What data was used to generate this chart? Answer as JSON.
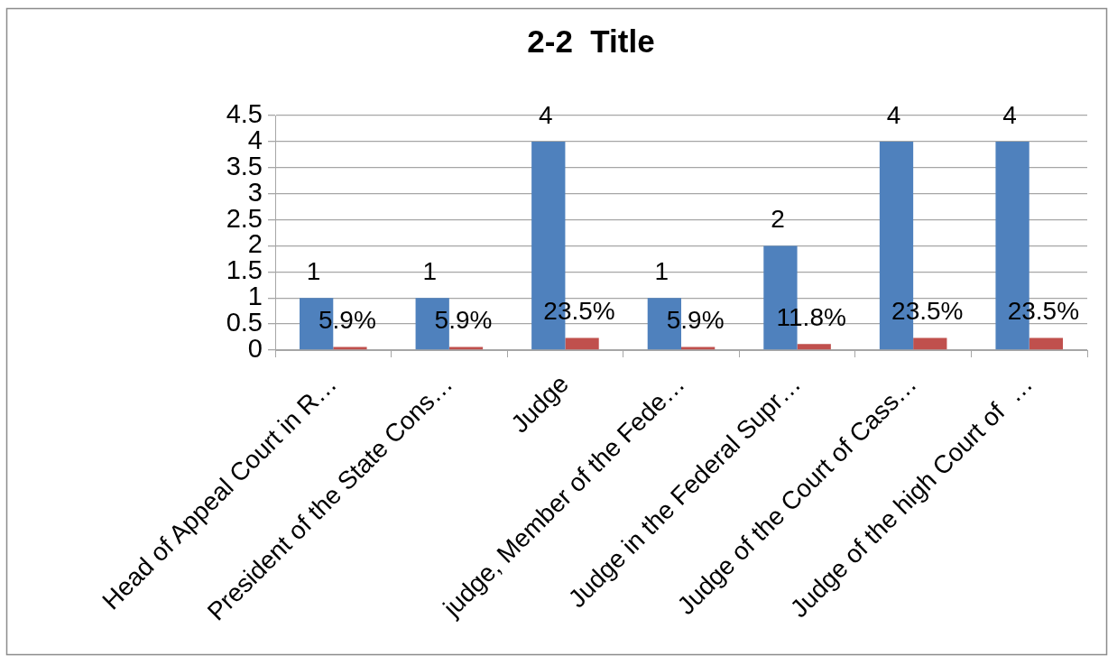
{
  "chart_data": {
    "type": "bar",
    "title": "2-2  Title",
    "categories": [
      "Head of Appeal Court in R…",
      "President of the State Cons…",
      "Judge",
      "judge, Member of the Fede…",
      "Judge in the Federal Supr…",
      "Judge of the Court of Cass…",
      "Judge of the high Court of  …"
    ],
    "series": [
      {
        "color": "#4f81bd",
        "values": [
          1,
          1,
          4,
          1,
          2,
          4,
          4
        ],
        "value_labels": [
          "1",
          "1",
          "4",
          "1",
          "2",
          "4",
          "4"
        ]
      },
      {
        "color": "#c0504d",
        "values": [
          0.059,
          0.059,
          0.235,
          0.059,
          0.118,
          0.235,
          0.235
        ],
        "value_labels": [
          "5.9%",
          "5.9%",
          "23.5%",
          "5.9%",
          "11.8%",
          "23.5%",
          "23.5%"
        ]
      }
    ],
    "ylim": [
      0,
      4.5
    ],
    "yticks": [
      0,
      0.5,
      1,
      1.5,
      2,
      2.5,
      3,
      3.5,
      4,
      4.5
    ],
    "grid": "y",
    "legend": false
  }
}
